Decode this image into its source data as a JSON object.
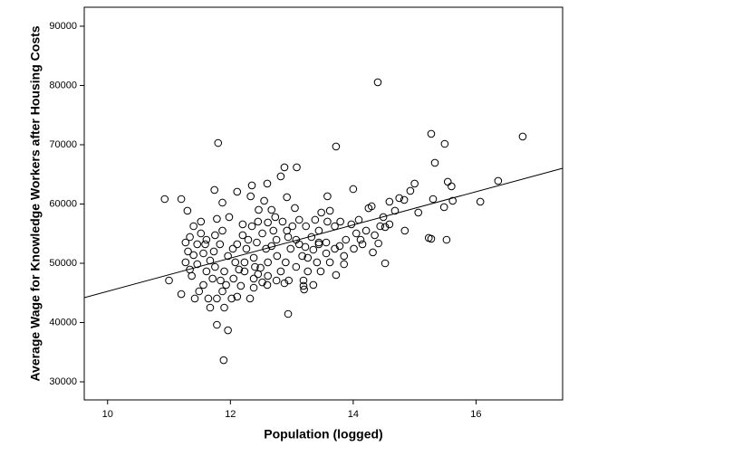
{
  "chart_data": {
    "type": "scatter",
    "x_label": "Population (logged)",
    "y_label": "Average Wage for Knowledge Workers after Housing Costs",
    "xlim": [
      9.62,
      17.41
    ],
    "ylim": [
      26950,
      93200
    ],
    "xticks": [
      10,
      12,
      14,
      16
    ],
    "yticks": [
      30000,
      40000,
      50000,
      60000,
      70000,
      80000,
      90000
    ],
    "color": "#000000",
    "x": [
      10.93,
      11.2,
      11.0,
      11.2,
      11.3,
      11.4,
      11.8,
      11.74,
      11.87,
      11.78,
      11.96,
      11.89,
      12.11,
      12.35,
      12.6,
      12.88,
      13.08,
      12.92,
      12.82,
      13.72,
      13.58,
      14.0,
      14.4,
      15.27,
      15.49,
      15.33,
      16.76,
      16.36,
      16.07,
      15.54,
      15.6,
      15.0,
      14.93,
      14.83,
      14.75,
      14.59,
      14.68,
      14.52,
      14.59,
      14.3,
      14.25,
      14.49,
      14.35,
      14.32,
      14.52,
      14.41,
      14.84,
      15.06,
      15.23,
      15.27,
      15.52,
      15.48,
      15.3,
      15.62,
      12.94,
      12.95,
      13.35,
      13.2,
      12.88,
      13.19,
      13.72,
      13.47,
      13.62,
      13.85,
      14.01,
      14.15,
      13.7,
      13.79,
      13.97,
      14.09,
      13.88,
      13.56,
      13.44,
      13.32,
      13.44,
      13.38,
      13.48,
      13.62,
      13.58,
      13.12,
      13.01,
      13.07,
      13.22,
      13.17,
      13.26,
      12.94,
      12.75,
      12.67,
      12.76,
      12.61,
      12.49,
      12.45,
      12.52,
      12.38,
      12.4,
      12.23,
      12.38,
      12.26,
      12.43,
      12.58,
      12.52,
      12.7,
      12.61,
      12.45,
      12.35,
      12.2,
      12.2,
      12.29,
      12.11,
      12.04,
      11.96,
      12.08,
      12.14,
      12.05,
      11.93,
      11.87,
      11.78,
      11.64,
      11.67,
      11.49,
      11.42,
      11.56,
      11.71,
      11.61,
      11.75,
      11.67,
      11.56,
      11.73,
      11.83,
      11.75,
      11.87,
      11.78,
      11.98,
      11.52,
      11.61,
      11.46,
      11.4,
      11.46,
      11.34,
      11.37,
      11.27,
      11.31,
      11.27,
      11.34,
      11.52,
      12.02,
      12.11,
      11.9,
      12.17,
      12.38,
      12.32,
      12.6,
      12.82,
      12.9,
      13.07,
      13.26,
      13.41,
      12.98,
      13.12,
      13.35,
      12.85,
      12.73,
      12.46,
      12.33,
      12.92,
      13.56,
      13.78,
      14.05,
      14.12,
      14.21,
      14.44,
      13.85,
      13.7,
      13.44,
      13.23,
      13.05,
      12.67,
      12.55,
      11.59,
      11.9,
      11.84,
      12.23,
      12.61,
      12.75,
      13.19
    ],
    "values": [
      60840,
      60840,
      47100,
      44800,
      58860,
      56260,
      70300,
      62370,
      60230,
      39620,
      38700,
      33660,
      62070,
      63140,
      63440,
      66190,
      66190,
      61150,
      64660,
      69700,
      61300,
      62520,
      80540,
      71840,
      70150,
      66950,
      71380,
      63900,
      60390,
      63750,
      62980,
      63440,
      62220,
      60690,
      61000,
      60390,
      58860,
      56110,
      56570,
      59620,
      59300,
      57790,
      54740,
      51840,
      50000,
      53360,
      55500,
      58560,
      54280,
      54130,
      53970,
      59470,
      60840,
      60540,
      41450,
      47100,
      46340,
      45580,
      46640,
      47100,
      48020,
      48630,
      50160,
      51230,
      52450,
      53210,
      56260,
      57030,
      56570,
      57330,
      53970,
      53510,
      53510,
      54430,
      55500,
      57330,
      58560,
      58860,
      57030,
      57330,
      56260,
      53970,
      52750,
      51230,
      50920,
      54430,
      53970,
      52910,
      51230,
      50160,
      49240,
      48170,
      46790,
      47410,
      49390,
      48630,
      50920,
      52450,
      53510,
      52450,
      55040,
      55500,
      56880,
      57030,
      56260,
      56570,
      54740,
      53970,
      53210,
      52450,
      51230,
      50160,
      48940,
      47410,
      46340,
      45270,
      44050,
      44050,
      42520,
      45270,
      44050,
      46340,
      47410,
      48630,
      49390,
      50460,
      51680,
      51990,
      53210,
      54740,
      55500,
      57490,
      57790,
      55040,
      53970,
      53210,
      51380,
      49850,
      48940,
      47870,
      50160,
      51990,
      53510,
      54430,
      57030,
      44050,
      44360,
      42520,
      46190,
      45880,
      44050,
      46340,
      48630,
      50160,
      49390,
      48630,
      50160,
      52450,
      53210,
      52290,
      57030,
      57790,
      59010,
      61300,
      55500,
      51680,
      52910,
      55040,
      53970,
      55500,
      56260,
      49850,
      52450,
      53210,
      56260,
      59320,
      59010,
      60540,
      53210,
      48630,
      47100,
      50160,
      47870,
      47100,
      46190
    ],
    "fit_line": {
      "x": [
        9.62,
        17.41
      ],
      "values": [
        44200,
        66030
      ]
    }
  }
}
